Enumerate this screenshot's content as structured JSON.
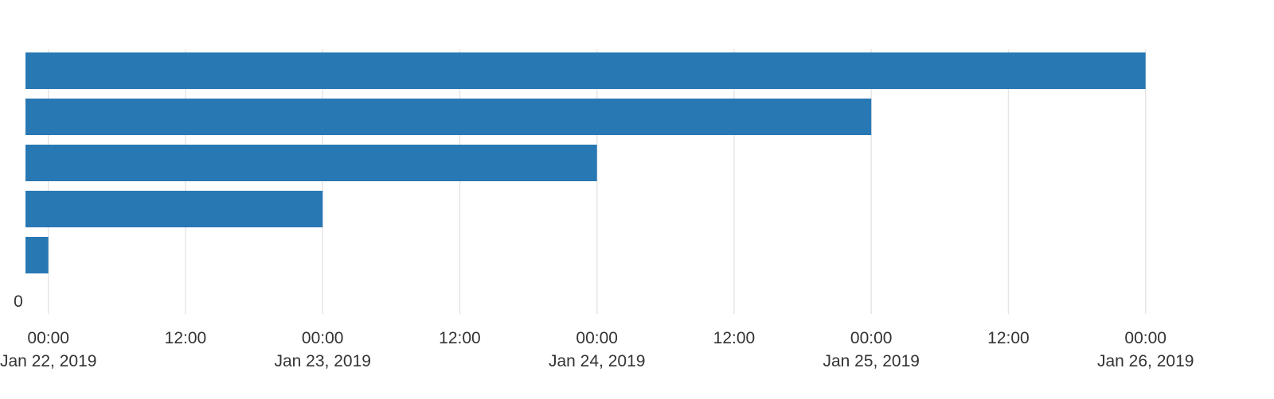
{
  "chart_data": {
    "type": "bar",
    "orientation": "horizontal",
    "title": "",
    "xlabel": "",
    "ylabel": "",
    "x_axis_type": "date",
    "xlim": [
      "2019-01-21T22:00",
      "2019-01-26T00:00"
    ],
    "zero_label": "0",
    "bar_color": "#2878b4",
    "grid": true,
    "legend": "none",
    "x_ticks": [
      {
        "time": "2019-01-22T00:00",
        "time_label": "00:00",
        "date_label": "Jan 22, 2019"
      },
      {
        "time": "2019-01-22T12:00",
        "time_label": "12:00",
        "date_label": ""
      },
      {
        "time": "2019-01-23T00:00",
        "time_label": "00:00",
        "date_label": "Jan 23, 2019"
      },
      {
        "time": "2019-01-23T12:00",
        "time_label": "12:00",
        "date_label": ""
      },
      {
        "time": "2019-01-24T00:00",
        "time_label": "00:00",
        "date_label": "Jan 24, 2019"
      },
      {
        "time": "2019-01-24T12:00",
        "time_label": "12:00",
        "date_label": ""
      },
      {
        "time": "2019-01-25T00:00",
        "time_label": "00:00",
        "date_label": "Jan 25, 2019"
      },
      {
        "time": "2019-01-25T12:00",
        "time_label": "12:00",
        "date_label": ""
      },
      {
        "time": "2019-01-26T00:00",
        "time_label": "00:00",
        "date_label": "Jan 26, 2019"
      }
    ],
    "bars": [
      {
        "end": "2019-01-26T00:00"
      },
      {
        "end": "2019-01-25T00:00"
      },
      {
        "end": "2019-01-24T00:00"
      },
      {
        "end": "2019-01-23T00:00"
      },
      {
        "end": "2019-01-22T00:00"
      }
    ]
  }
}
